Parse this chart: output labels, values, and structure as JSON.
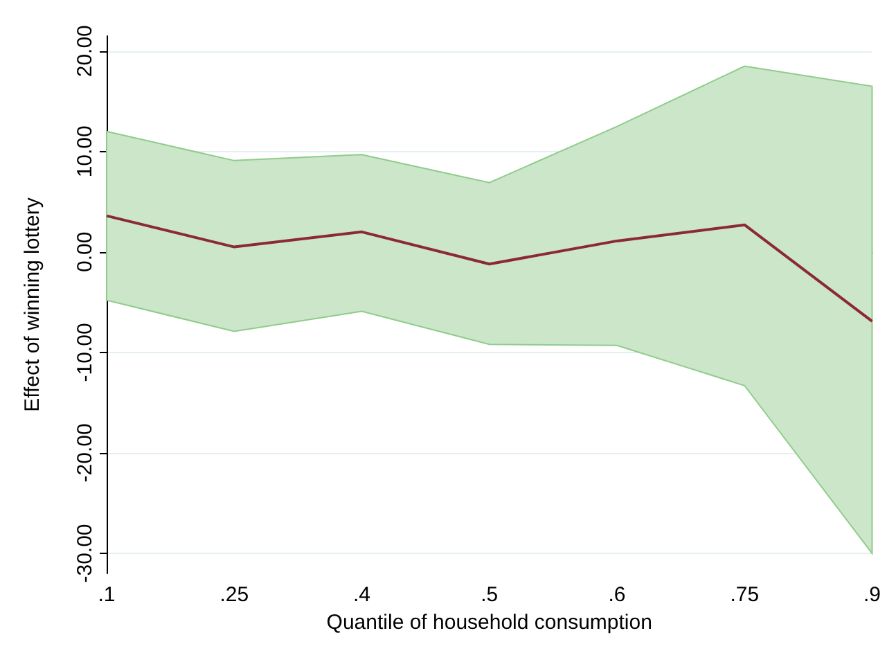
{
  "chart_data": {
    "type": "line",
    "xlabel": "Quantile of household consumption",
    "ylabel": "Effect of winning lottery",
    "categories": [
      ".1",
      ".25",
      ".4",
      ".5",
      ".6",
      ".75",
      ".9"
    ],
    "series": [
      {
        "color": "#8b2a35",
        "values": [
          3.6,
          0.5,
          2.0,
          -1.2,
          1.1,
          2.7,
          -6.9
        ],
        "lower": [
          -4.8,
          -7.9,
          -5.9,
          -9.2,
          -9.3,
          -13.3,
          -30.0
        ],
        "upper": [
          12.0,
          9.1,
          9.7,
          6.9,
          12.5,
          18.5,
          16.5
        ]
      }
    ],
    "ylim": [
      -32,
      21.5
    ],
    "yticks": [
      {
        "value": -30,
        "label": "-30.00"
      },
      {
        "value": -20,
        "label": "-20.00"
      },
      {
        "value": -10,
        "label": "-10.00"
      },
      {
        "value": 0,
        "label": "0.00"
      },
      {
        "value": 10,
        "label": "10.00"
      },
      {
        "value": 20,
        "label": "20.00"
      }
    ],
    "grid": "y",
    "marker": "none",
    "line_style": "solid"
  }
}
